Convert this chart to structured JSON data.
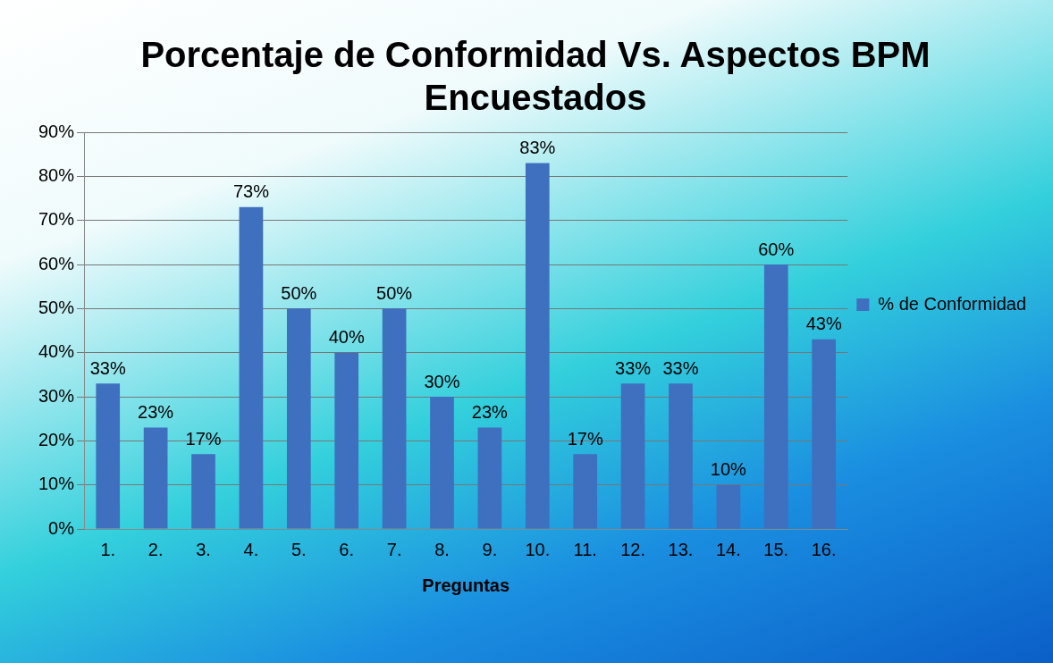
{
  "chart_data": {
    "type": "bar",
    "title": "Porcentaje de Conformidad Vs. Aspectos BPM Encuestados",
    "xlabel": "Preguntas",
    "categories": [
      "1.",
      "2.",
      "3.",
      "4.",
      "5.",
      "6.",
      "7.",
      "8.",
      "9.",
      "10.",
      "11.",
      "12.",
      "13.",
      "14.",
      "15.",
      "16."
    ],
    "series": [
      {
        "name": "% de Conformidad",
        "color": "#3f6fbf",
        "values": [
          33,
          23,
          17,
          73,
          50,
          40,
          50,
          30,
          23,
          83,
          17,
          33,
          33,
          10,
          60,
          43
        ],
        "value_labels": [
          "33%",
          "23%",
          "17%",
          "73%",
          "50%",
          "40%",
          "50%",
          "30%",
          "23%",
          "83%",
          "17%",
          "33%",
          "33%",
          "10%",
          "60%",
          "43%"
        ]
      }
    ],
    "ylim": [
      0,
      90
    ],
    "yticks": [
      {
        "value": 0,
        "label": "0%"
      },
      {
        "value": 10,
        "label": "10%"
      },
      {
        "value": 20,
        "label": "20%"
      },
      {
        "value": 30,
        "label": "30%"
      },
      {
        "value": 40,
        "label": "40%"
      },
      {
        "value": 50,
        "label": "50%"
      },
      {
        "value": 60,
        "label": "60%"
      },
      {
        "value": 70,
        "label": "70%"
      },
      {
        "value": 80,
        "label": "80%"
      },
      {
        "value": 90,
        "label": "90%"
      }
    ],
    "grid": "y",
    "legend": "right"
  }
}
